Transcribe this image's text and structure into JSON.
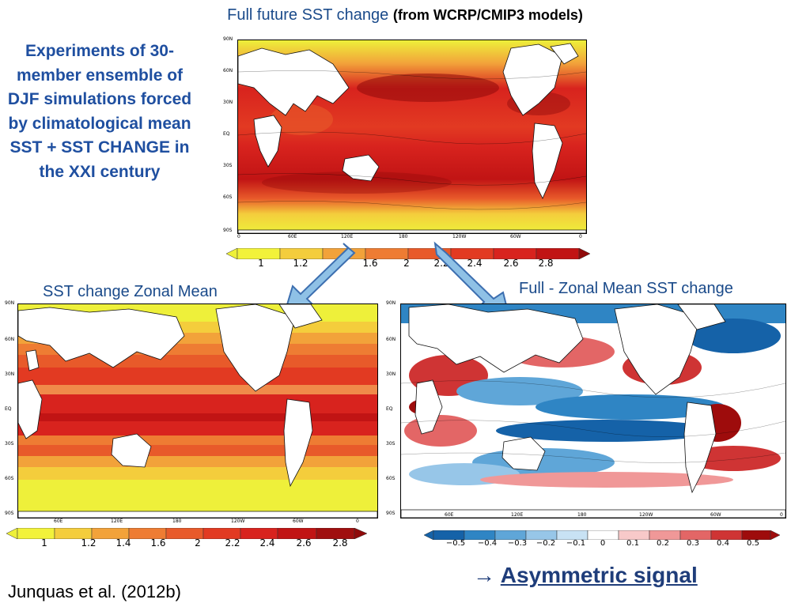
{
  "header": {
    "title_main": "Full future SST change",
    "title_bold": "(from WCRP/CMIP3 models)"
  },
  "side_text": "Experiments of 30-member ensemble of DJF simulations forced by climatological mean SST  + SST CHANGE in the XXI century",
  "maps": {
    "top": {
      "lat_labels": [
        "90N",
        "60N",
        "30N",
        "EQ",
        "30S",
        "60S",
        "90S"
      ],
      "lon_labels": [
        "0",
        "60E",
        "120E",
        "180",
        "120W",
        "60W",
        "0"
      ],
      "colorbar_labels": [
        "1",
        "1.2",
        "1.6",
        "2",
        "2.2",
        "2.4",
        "2.6",
        "2.8"
      ]
    },
    "left": {
      "subtitle": "SST change Zonal Mean",
      "lat_labels": [
        "90N",
        "60N",
        "30N",
        "EQ",
        "30S",
        "60S",
        "90S"
      ],
      "lon_labels": [
        "60E",
        "120E",
        "180",
        "120W",
        "60W",
        "0"
      ],
      "colorbar_labels": [
        "1",
        "1.2",
        "1.4",
        "1.6",
        "2",
        "2.2",
        "2.4",
        "2.6",
        "2.8"
      ]
    },
    "right": {
      "subtitle": "Full - Zonal Mean SST change",
      "lat_labels": [
        "90N",
        "60N",
        "30N",
        "EQ",
        "30S",
        "60S",
        "90S"
      ],
      "lon_labels": [
        "60E",
        "120E",
        "180",
        "120W",
        "60W",
        "0"
      ],
      "colorbar_labels": [
        "−0.5",
        "−0.4",
        "−0.3",
        "−0.2",
        "−0.1",
        "0",
        "0.1",
        "0.2",
        "0.3",
        "0.4",
        "0.5"
      ]
    }
  },
  "footer": {
    "citation": "Junquas et al. (2012b)",
    "arrow": "→",
    "asymmetric": "Asymmetric signal"
  },
  "colors": {
    "title_blue": "#1a4a8a",
    "side_blue": "#1f4fa0",
    "arrow_fill": "#8fc1e6",
    "arrow_stroke": "#3d6fb0",
    "warm_scale": [
      "#f2f23a",
      "#f4cd3c",
      "#f2a23a",
      "#ee7c33",
      "#e85a2a",
      "#e23a22",
      "#d8231e",
      "#c11414",
      "#8f0a0a"
    ],
    "div_scale": [
      "#1562a8",
      "#2f85c4",
      "#5fa6d8",
      "#97c6e8",
      "#c8e2f4",
      "#ffffff",
      "#f8c9c9",
      "#f09898",
      "#e36666",
      "#cf3434",
      "#9e0c0c"
    ]
  }
}
